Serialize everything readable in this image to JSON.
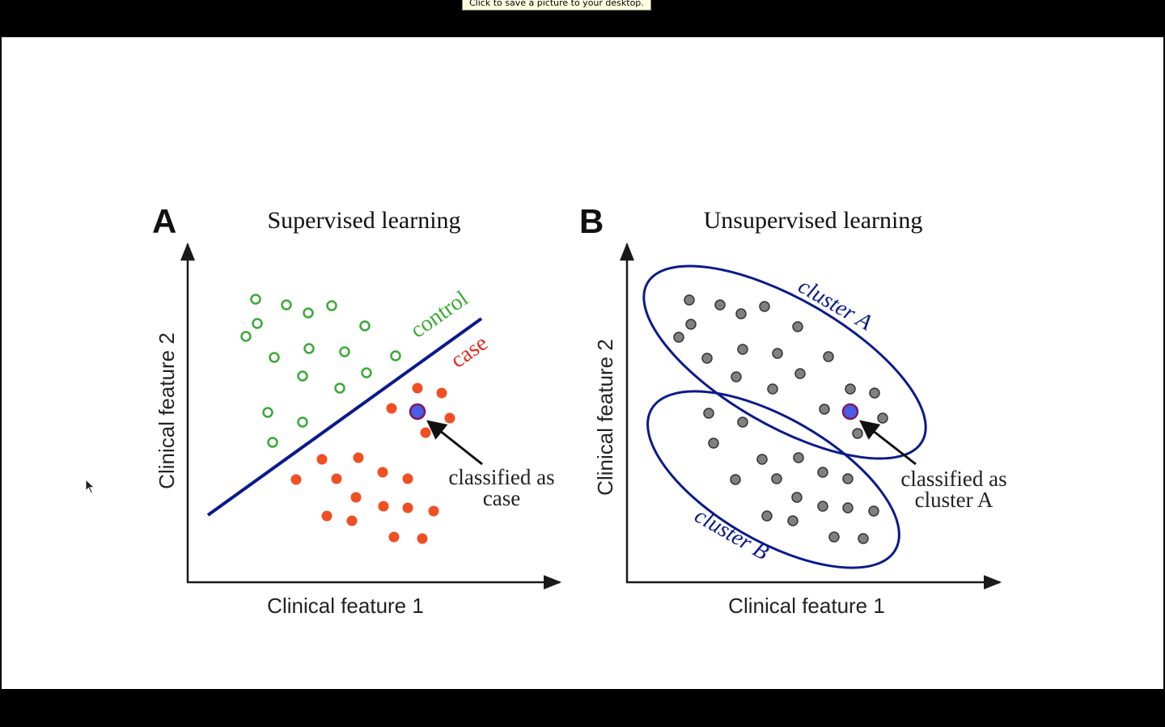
{
  "tooltip": {
    "text": "Click to save a picture to your desktop."
  },
  "panel_a": {
    "letter": "A",
    "title": "Supervised learning",
    "x_axis_label": "Clinical feature 1",
    "y_axis_label": "Clinical feature 2",
    "boundary_label_control": "control",
    "boundary_label_case": "case",
    "annotation_line1": "classified as",
    "annotation_line2": "case"
  },
  "panel_b": {
    "letter": "B",
    "title": "Unsupervised learning",
    "x_axis_label": "Clinical feature 1",
    "y_axis_label": "Clinical feature 2",
    "cluster_a_label": "cluster A",
    "cluster_b_label": "cluster B",
    "annotation_line1": "classified as",
    "annotation_line2": "cluster A"
  },
  "colors": {
    "control": "#3aaa35",
    "case_fill": "#f04e23",
    "case_text": "#e8281e",
    "new_point": "#4a5be8",
    "new_point_stroke": "#7a1a5a",
    "boundary": "#0a1a8c",
    "cluster_point": "#808080",
    "axis": "#1a1a1a"
  }
}
